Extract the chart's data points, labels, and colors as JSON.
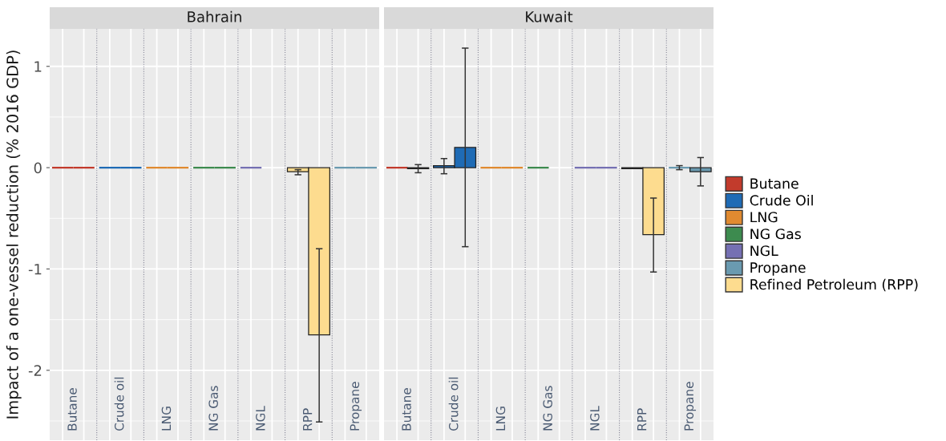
{
  "chart_data": [
    {
      "type": "bar",
      "title": "Bahrain",
      "ylabel": "Impact of a one-vessel reduction (% 2016 GDP)",
      "categories": [
        "Butane",
        "Crude oil",
        "LNG",
        "NG Gas",
        "NGL",
        "RPP",
        "Propane"
      ],
      "ylim": [
        -2.69,
        1.37
      ],
      "yticks": [
        -2,
        -1,
        0,
        1
      ],
      "grid": true,
      "series": [
        {
          "color": "#c23b2c",
          "values": [
            0,
            null,
            null,
            null,
            null,
            null,
            null
          ]
        },
        {
          "color": "#c23b2c",
          "values": [
            0,
            null,
            null,
            null,
            null,
            null,
            null
          ]
        },
        {
          "color": "#1f6bb5",
          "values": [
            null,
            0,
            null,
            null,
            null,
            null,
            null
          ]
        },
        {
          "color": "#1f6bb5",
          "values": [
            null,
            0,
            null,
            null,
            null,
            null,
            null
          ]
        },
        {
          "color": "#e08a30",
          "values": [
            null,
            null,
            0,
            null,
            null,
            null,
            null
          ]
        },
        {
          "color": "#e08a30",
          "values": [
            null,
            null,
            0,
            null,
            null,
            null,
            null
          ]
        },
        {
          "color": "#3d8b4f",
          "values": [
            null,
            null,
            null,
            0,
            null,
            null,
            null
          ]
        },
        {
          "color": "#3d8b4f",
          "values": [
            null,
            null,
            null,
            0,
            null,
            null,
            null
          ]
        },
        {
          "color": "#7570b3",
          "values": [
            null,
            null,
            null,
            null,
            0,
            null,
            null
          ]
        },
        {
          "color": "#6a9ab0",
          "values": [
            null,
            null,
            null,
            null,
            null,
            null,
            0
          ]
        },
        {
          "color": "#6a9ab0",
          "values": [
            null,
            null,
            null,
            null,
            null,
            null,
            0
          ]
        },
        {
          "color": "#fddc8f",
          "values": [
            null,
            null,
            null,
            null,
            null,
            -0.04,
            null
          ],
          "errors": [
            null,
            null,
            null,
            null,
            null,
            [
              -0.07,
              -0.02
            ],
            null
          ]
        },
        {
          "color": "#fddc8f",
          "values": [
            null,
            null,
            null,
            null,
            null,
            -1.65,
            null
          ],
          "errors": [
            null,
            null,
            null,
            null,
            null,
            [
              -2.51,
              -0.8
            ],
            null
          ]
        }
      ]
    },
    {
      "type": "bar",
      "title": "Kuwait",
      "tick_labels": "x",
      "legend": "right",
      "categories": [
        "Butane",
        "Crude oil",
        "LNG",
        "NG Gas",
        "NGL",
        "RPP",
        "Propane"
      ],
      "ylim": [
        -2.69,
        1.37
      ],
      "yticks": [
        -2,
        -1,
        0,
        1
      ],
      "grid": true,
      "series": [
        {
          "name": "Butane",
          "color": "#c23b2c",
          "values": [
            0,
            null,
            null,
            null,
            null,
            null,
            null
          ]
        },
        {
          "color": "#c23b2c",
          "values": [
            -0.01,
            null,
            null,
            null,
            null,
            null,
            null
          ],
          "errors": [
            [
              -0.05,
              0.03
            ],
            null,
            null,
            null,
            null,
            null,
            null
          ]
        },
        {
          "name": "Crude Oil",
          "color": "#1f6bb5",
          "values": [
            null,
            0.02,
            null,
            null,
            null,
            null,
            null
          ],
          "errors": [
            null,
            [
              -0.06,
              0.09
            ],
            null,
            null,
            null,
            null,
            null
          ]
        },
        {
          "color": "#1f6bb5",
          "values": [
            null,
            0.2,
            null,
            null,
            null,
            null,
            null
          ],
          "errors": [
            null,
            [
              -0.78,
              1.18
            ],
            null,
            null,
            null,
            null,
            null
          ]
        },
        {
          "name": "LNG",
          "color": "#e08a30",
          "values": [
            null,
            null,
            0,
            null,
            null,
            null,
            null
          ]
        },
        {
          "color": "#e08a30",
          "values": [
            null,
            null,
            0,
            null,
            null,
            null,
            null
          ]
        },
        {
          "name": "NG Gas",
          "color": "#3d8b4f",
          "values": [
            null,
            null,
            null,
            0,
            null,
            null,
            null
          ]
        },
        {
          "name": "NGL",
          "color": "#7570b3",
          "values": [
            null,
            null,
            null,
            null,
            0,
            null,
            null
          ]
        },
        {
          "color": "#7570b3",
          "values": [
            null,
            null,
            null,
            null,
            0,
            null,
            null
          ]
        },
        {
          "name": "Propane",
          "color": "#6a9ab0",
          "values": [
            null,
            null,
            null,
            null,
            null,
            null,
            0
          ],
          "errors": [
            null,
            null,
            null,
            null,
            null,
            null,
            [
              -0.02,
              0.02
            ]
          ]
        },
        {
          "color": "#6a9ab0",
          "values": [
            null,
            null,
            null,
            null,
            null,
            null,
            -0.04
          ],
          "errors": [
            null,
            null,
            null,
            null,
            null,
            null,
            [
              -0.18,
              0.1
            ]
          ]
        },
        {
          "name": "Refined Petroleum (RPP)",
          "color": "#fddc8f",
          "values": [
            null,
            null,
            null,
            null,
            null,
            -0.01,
            null
          ]
        },
        {
          "color": "#fddc8f",
          "values": [
            null,
            null,
            null,
            null,
            null,
            -0.66,
            null
          ],
          "errors": [
            null,
            null,
            null,
            null,
            null,
            [
              -1.03,
              -0.3
            ],
            null
          ]
        }
      ]
    }
  ]
}
